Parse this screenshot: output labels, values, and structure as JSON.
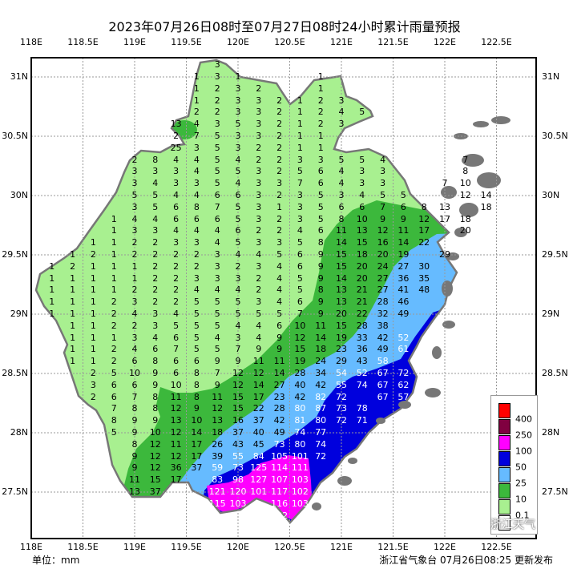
{
  "title": "2023年07月26日08时至07月27日08时24小时累计雨量预报",
  "footer": {
    "unit": "单位：mm",
    "issuer": "浙江省气象台 07月26日08:25 更新发布",
    "watermark": "浙江天气"
  },
  "axes": {
    "lon_ticks": [
      {
        "v": 118,
        "label": "118E"
      },
      {
        "v": 118.5,
        "label": "118.5E"
      },
      {
        "v": 119,
        "label": "119E"
      },
      {
        "v": 119.5,
        "label": "119.5E"
      },
      {
        "v": 120,
        "label": "120E"
      },
      {
        "v": 120.5,
        "label": "120.5E"
      },
      {
        "v": 121,
        "label": "121E"
      },
      {
        "v": 121.5,
        "label": "121.5E"
      },
      {
        "v": 122,
        "label": "122E"
      },
      {
        "v": 122.5,
        "label": "122.5E"
      }
    ],
    "lat_ticks": [
      {
        "v": 31,
        "label": "31N"
      },
      {
        "v": 30.5,
        "label": "30.5N"
      },
      {
        "v": 30,
        "label": "30N"
      },
      {
        "v": 29.5,
        "label": "29.5N"
      },
      {
        "v": 29,
        "label": "29N"
      },
      {
        "v": 28.5,
        "label": "28.5N"
      },
      {
        "v": 28,
        "label": "28N"
      },
      {
        "v": 27.5,
        "label": "27.5N"
      }
    ]
  },
  "legend": {
    "items": [
      {
        "color": "#ff0000",
        "label": "400"
      },
      {
        "color": "#800040",
        "label": "250"
      },
      {
        "color": "#ff00ff",
        "label": "100"
      },
      {
        "color": "#0000dd",
        "label": "50"
      },
      {
        "color": "#66bbff",
        "label": "25"
      },
      {
        "color": "#3cb83c",
        "label": "10"
      },
      {
        "color": "#a8f090",
        "label": "0.1"
      },
      {
        "color": "#ffffff",
        "label": ""
      }
    ]
  },
  "colors": {
    "land_light": "#a8f090",
    "green": "#3cb83c",
    "light_blue": "#66bbff",
    "blue": "#0000dd",
    "magenta": "#ff00ff",
    "coast": "#777777"
  },
  "grid_step": {
    "lon": 0.2,
    "lat": 0.1
  },
  "rain_rows": [
    {
      "lat": 31.1,
      "lon0": 119.8,
      "v": [
        3
      ]
    },
    {
      "lat": 31.0,
      "lon0": 119.6,
      "v": [
        1,
        3,
        1,
        null,
        null,
        null,
        1
      ]
    },
    {
      "lat": 30.9,
      "lon0": 119.6,
      "v": [
        1,
        2,
        3,
        2,
        null,
        null,
        1
      ]
    },
    {
      "lat": 30.8,
      "lon0": 119.6,
      "v": [
        1,
        2,
        3,
        3,
        2,
        1,
        2,
        3
      ]
    },
    {
      "lat": 30.7,
      "lon0": 119.6,
      "v": [
        2,
        2,
        3,
        3,
        2,
        1,
        2,
        4,
        5
      ]
    },
    {
      "lat": 30.6,
      "lon0": 119.4,
      "v": [
        13,
        4,
        3,
        5,
        3,
        2,
        1,
        2,
        3
      ]
    },
    {
      "lat": 30.5,
      "lon0": 119.4,
      "v": [
        2,
        7,
        5,
        3,
        3,
        2,
        1,
        1
      ]
    },
    {
      "lat": 30.4,
      "lon0": 119.4,
      "v": [
        25,
        3,
        5,
        3,
        2,
        2,
        1,
        1
      ]
    },
    {
      "lat": 30.3,
      "lon0": 119.0,
      "v": [
        2,
        8,
        4,
        4,
        5,
        4,
        2,
        2,
        3,
        3,
        5,
        5,
        4,
        null,
        null,
        null,
        7
      ]
    },
    {
      "lat": 30.2,
      "lon0": 119.0,
      "v": [
        3,
        3,
        3,
        4,
        5,
        5,
        3,
        2,
        5,
        6,
        4,
        3,
        3,
        null,
        null,
        null,
        8
      ]
    },
    {
      "lat": 30.1,
      "lon0": 119.0,
      "v": [
        3,
        4,
        3,
        3,
        5,
        4,
        3,
        3,
        7,
        6,
        4,
        3,
        3,
        null,
        null,
        7,
        10
      ]
    },
    {
      "lat": 30.0,
      "lon0": 119.0,
      "v": [
        5,
        5,
        4,
        4,
        6,
        6,
        3,
        2,
        3,
        5,
        3,
        4,
        5,
        5,
        null,
        null,
        12,
        14
      ]
    },
    {
      "lat": 29.9,
      "lon0": 119.0,
      "v": [
        3,
        5,
        6,
        8,
        7,
        5,
        3,
        1,
        3,
        5,
        6,
        6,
        7,
        6,
        8,
        13,
        null,
        18
      ]
    },
    {
      "lat": 29.8,
      "lon0": 118.8,
      "v": [
        1,
        4,
        4,
        6,
        6,
        6,
        5,
        3,
        2,
        3,
        5,
        8,
        10,
        9,
        9,
        12,
        17,
        18
      ]
    },
    {
      "lat": 29.7,
      "lon0": 118.8,
      "v": [
        1,
        3,
        3,
        4,
        4,
        4,
        6,
        2,
        2,
        4,
        6,
        11,
        13,
        12,
        11,
        17,
        null,
        20
      ]
    },
    {
      "lat": 29.6,
      "lon0": 118.6,
      "v": [
        1,
        1,
        2,
        2,
        3,
        3,
        4,
        5,
        3,
        3,
        5,
        8,
        14,
        15,
        16,
        14,
        22
      ]
    },
    {
      "lat": 29.5,
      "lon0": 118.4,
      "v": [
        1,
        2,
        1,
        2,
        2,
        2,
        2,
        3,
        4,
        4,
        5,
        6,
        9,
        15,
        18,
        20,
        19,
        null,
        29
      ]
    },
    {
      "lat": 29.4,
      "lon0": 118.2,
      "v": [
        1,
        2,
        1,
        1,
        1,
        2,
        2,
        2,
        3,
        2,
        3,
        4,
        6,
        9,
        15,
        20,
        24,
        27,
        30
      ]
    },
    {
      "lat": 29.3,
      "lon0": 118.2,
      "v": [
        1,
        1,
        1,
        1,
        1,
        2,
        2,
        3,
        3,
        3,
        2,
        4,
        5,
        9,
        14,
        20,
        27,
        36,
        35
      ]
    },
    {
      "lat": 29.2,
      "lon0": 118.2,
      "v": [
        1,
        1,
        1,
        1,
        2,
        2,
        2,
        4,
        4,
        4,
        2,
        4,
        5,
        8,
        13,
        21,
        27,
        41,
        48
      ]
    },
    {
      "lat": 29.1,
      "lon0": 118.2,
      "v": [
        1,
        1,
        1,
        2,
        3,
        2,
        2,
        5,
        5,
        5,
        3,
        4,
        6,
        9,
        13,
        21,
        28,
        46
      ]
    },
    {
      "lat": 29.0,
      "lon0": 118.2,
      "v": [
        1,
        1,
        1,
        2,
        4,
        3,
        4,
        5,
        5,
        5,
        5,
        5,
        7,
        9,
        20,
        22,
        32,
        49
      ]
    },
    {
      "lat": 28.9,
      "lon0": 118.4,
      "v": [
        1,
        1,
        2,
        2,
        3,
        5,
        5,
        5,
        4,
        4,
        6,
        10,
        11,
        15,
        28,
        38
      ]
    },
    {
      "lat": 28.8,
      "lon0": 118.4,
      "v": [
        1,
        1,
        1,
        3,
        4,
        6,
        5,
        4,
        3,
        4,
        9,
        12,
        14,
        19,
        33,
        42,
        52
      ]
    },
    {
      "lat": 28.7,
      "lon0": 118.4,
      "v": [
        1,
        1,
        2,
        4,
        6,
        7,
        5,
        5,
        7,
        9,
        9,
        15,
        18,
        23,
        36,
        49,
        61
      ]
    },
    {
      "lat": 28.6,
      "lon0": 118.4,
      "v": [
        1,
        1,
        2,
        6,
        8,
        6,
        6,
        9,
        9,
        11,
        11,
        19,
        24,
        29,
        43,
        58
      ]
    },
    {
      "lat": 28.5,
      "lon0": 118.6,
      "v": [
        2,
        5,
        10,
        9,
        6,
        8,
        7,
        12,
        12,
        14,
        28,
        34,
        54,
        52,
        67,
        72
      ]
    },
    {
      "lat": 28.4,
      "lon0": 118.6,
      "v": [
        3,
        6,
        6,
        9,
        10,
        8,
        9,
        12,
        14,
        27,
        40,
        42,
        55,
        74,
        67,
        62
      ]
    },
    {
      "lat": 28.3,
      "lon0": 118.6,
      "v": [
        2,
        6,
        7,
        8,
        11,
        8,
        11,
        15,
        17,
        23,
        42,
        82,
        72,
        null,
        67,
        57
      ]
    },
    {
      "lat": 28.2,
      "lon0": 118.8,
      "v": [
        7,
        8,
        8,
        12,
        9,
        12,
        15,
        22,
        28,
        80,
        87,
        73,
        78
      ]
    },
    {
      "lat": 28.1,
      "lon0": 118.8,
      "v": [
        8,
        9,
        9,
        13,
        10,
        13,
        16,
        37,
        42,
        81,
        80,
        72,
        71
      ]
    },
    {
      "lat": 28.0,
      "lon0": 118.8,
      "v": [
        5,
        9,
        10,
        12,
        14,
        18,
        37,
        40,
        49,
        74,
        77
      ]
    },
    {
      "lat": 27.9,
      "lon0": 119.0,
      "v": [
        8,
        12,
        11,
        17,
        26,
        43,
        45,
        73,
        80,
        74
      ]
    },
    {
      "lat": 27.8,
      "lon0": 119.0,
      "v": [
        9,
        12,
        12,
        17,
        39,
        55,
        84,
        105,
        101,
        72
      ]
    },
    {
      "lat": 27.7,
      "lon0": 119.0,
      "v": [
        9,
        12,
        36,
        37,
        59,
        73,
        125,
        114,
        111
      ]
    },
    {
      "lat": 27.6,
      "lon0": 119.0,
      "v": [
        11,
        15,
        17,
        null,
        83,
        98,
        127,
        107,
        103
      ]
    },
    {
      "lat": 27.5,
      "lon0": 119.0,
      "v": [
        13,
        37,
        null,
        null,
        121,
        120,
        101,
        117,
        102
      ]
    },
    {
      "lat": 27.4,
      "lon0": 119.8,
      "v": [
        115,
        103,
        null,
        116,
        103
      ]
    },
    {
      "lat": 27.3,
      "lon0": 120.4,
      "v": [
        102
      ]
    }
  ]
}
